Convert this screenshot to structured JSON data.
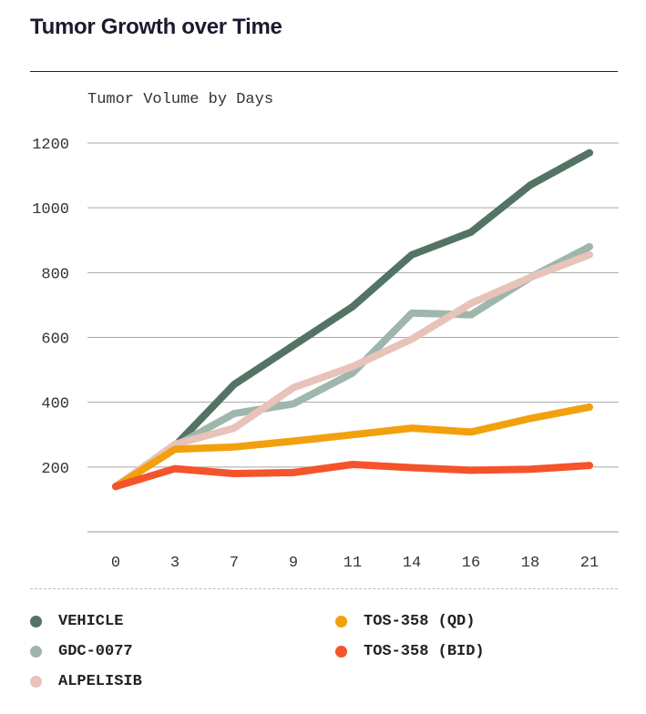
{
  "header": {
    "title": "Tumor Growth over Time"
  },
  "chart_data": {
    "type": "line",
    "title": "Tumor Volume by Days",
    "xlabel": "",
    "ylabel": "",
    "categories": [
      "0",
      "3",
      "7",
      "9",
      "11",
      "14",
      "16",
      "18",
      "21"
    ],
    "ylim": [
      0,
      1200
    ],
    "yticks": [
      200,
      400,
      600,
      800,
      1000,
      1200
    ],
    "series": [
      {
        "name": "VEHICLE",
        "color": "#537464",
        "values": [
          140,
          265,
          455,
          575,
          695,
          855,
          925,
          1070,
          1170
        ]
      },
      {
        "name": "GDC-0077",
        "color": "#9fb6ad",
        "values": [
          140,
          265,
          365,
          395,
          490,
          675,
          670,
          785,
          880
        ]
      },
      {
        "name": "ALPELISIB",
        "color": "#e7c3ba",
        "values": [
          140,
          270,
          320,
          445,
          510,
          595,
          705,
          785,
          855
        ]
      },
      {
        "name": "TOS-358 (QD)",
        "color": "#f3a00d",
        "values": [
          140,
          255,
          262,
          280,
          300,
          320,
          308,
          350,
          385
        ]
      },
      {
        "name": "TOS-358 (BID)",
        "color": "#f4532c",
        "values": [
          140,
          195,
          180,
          183,
          208,
          198,
          190,
          193,
          205
        ]
      }
    ]
  }
}
